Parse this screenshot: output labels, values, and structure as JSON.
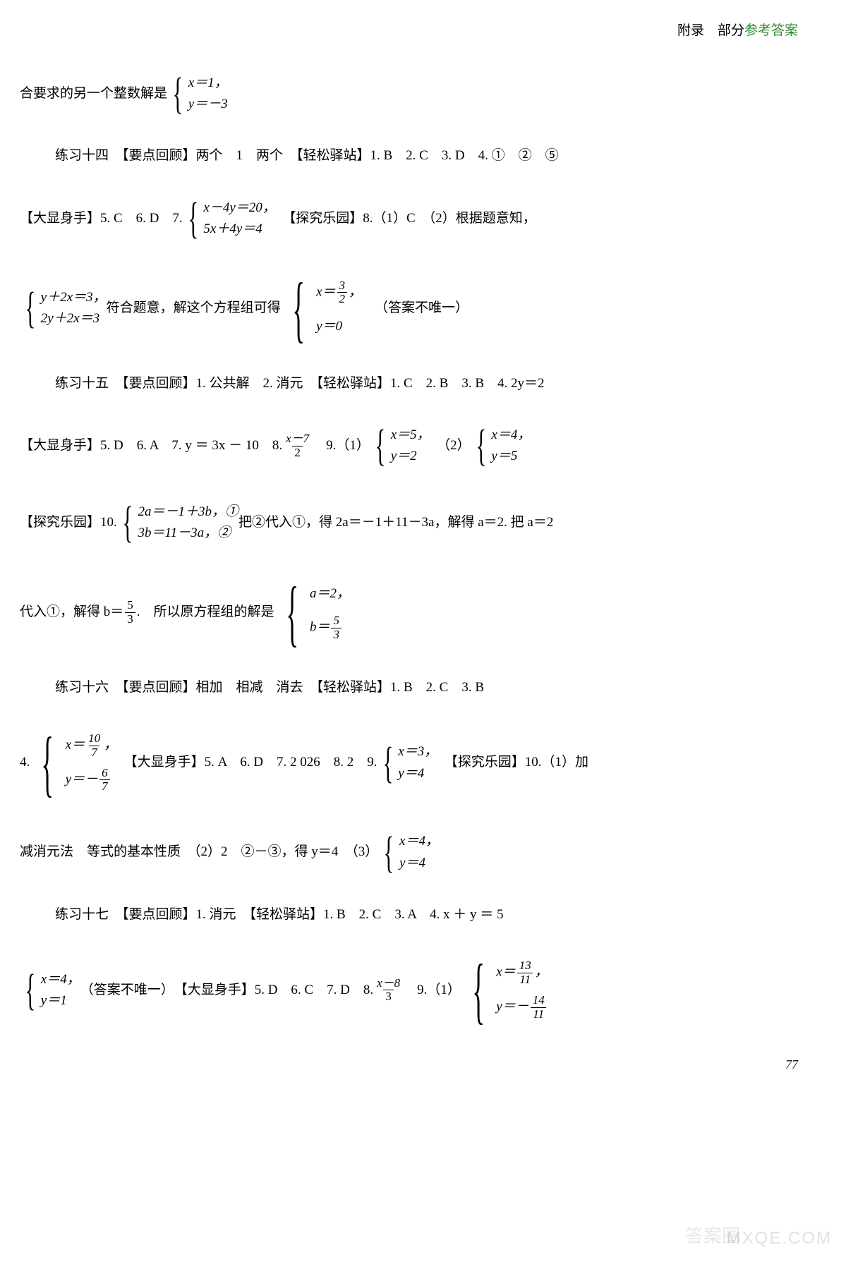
{
  "header": {
    "prefix": "附录　部分",
    "green": "参考答案"
  },
  "l1": {
    "pre": "合要求的另一个整数解是",
    "sys": {
      "r1": "x＝1，",
      "r2": "y＝－3"
    }
  },
  "l2": {
    "t": "练习十四　【要点回顾】两个　1　两个　【轻松驿站】1. B　2. C　3. D　4. ①　②　⑤"
  },
  "l3": {
    "pre": "【大显身手】5. C　6. D　7.",
    "sys": {
      "r1": "x－4y＝20，",
      "r2": "5x＋4y＝4"
    },
    "post": "　【探究乐园】8.（1）C　（2）根据题意知，"
  },
  "l4": {
    "sys1": {
      "r1": "y＋2x＝3，",
      "r2": "2y＋2x＝3"
    },
    "mid": "符合题意，解这个方程组可得",
    "sys2r1a": "x＝",
    "sys2r1frac": {
      "n": "3",
      "d": "2"
    },
    "sys2r1b": "，",
    "sys2r2": "y＝0",
    "post": "（答案不唯一）"
  },
  "l5": {
    "t": "练习十五　【要点回顾】1. 公共解　2. 消元　【轻松驿站】1. C　2. B　3. B　4. 2y＝2"
  },
  "l6": {
    "pre": "【大显身手】5. D　6. A　7. y ＝ 3x － 10　8. ",
    "frac": {
      "n": "x－7",
      "d": "2"
    },
    "mid": "　9.（1）",
    "sys1": {
      "r1": "x＝5，",
      "r2": "y＝2"
    },
    "mid2": "　（2）",
    "sys2": {
      "r1": "x＝4，",
      "r2": "y＝5"
    }
  },
  "l7": {
    "pre": "【探究乐园】10.",
    "sys": {
      "r1": "2a＝－1＋3b，①",
      "r2": "3b＝11－3a，②"
    },
    "post": "把②代入①，得 2a＝－1＋11－3a，解得 a＝2. 把 a＝2"
  },
  "l8": {
    "pre1": "代入①，解得 b＝",
    "frac1": {
      "n": "5",
      "d": "3"
    },
    "pre2": ".　所以原方程组的解是",
    "sysr1": "a＝2，",
    "sysr2a": "b＝",
    "sysr2frac": {
      "n": "5",
      "d": "3"
    }
  },
  "l9": {
    "t": "练习十六　【要点回顾】相加　相减　消去　【轻松驿站】1. B　2. C　3. B"
  },
  "l10": {
    "pre": "4.",
    "sysr1a": "x＝",
    "sysr1frac": {
      "n": "10",
      "d": "7"
    },
    "sysr1b": "，",
    "sysr2a": "y＝－",
    "sysr2frac": {
      "n": "6",
      "d": "7"
    },
    "mid": "　【大显身手】5. A　6. D　7. 2 026　8. 2　9.",
    "sys2": {
      "r1": "x＝3，",
      "r2": "y＝4"
    },
    "post": "　【探究乐园】10.（1）加"
  },
  "l11": {
    "pre": "减消元法　等式的基本性质　（2）2　②－③，得 y＝4　（3）",
    "sys": {
      "r1": "x＝4，",
      "r2": "y＝4"
    }
  },
  "l12": {
    "t": "练习十七　【要点回顾】1. 消元　【轻松驿站】1. B　2. C　3. A　4. x ＋ y ＝ 5"
  },
  "l13": {
    "sys1": {
      "r1": "x＝4，",
      "r2": "y＝1"
    },
    "mid1": "（答案不唯一）　【大显身手】5. D　6. C　7. D　8. ",
    "frac": {
      "n": "x－8",
      "d": "3"
    },
    "mid2": "　9.（1）",
    "sys2r1a": "x＝",
    "sys2r1frac": {
      "n": "13",
      "d": "11"
    },
    "sys2r1b": "，",
    "sys2r2a": "y＝－",
    "sys2r2frac": {
      "n": "14",
      "d": "11"
    }
  },
  "page": "77",
  "wm_cn": "答案圈",
  "wm_en": "MXQE.COM"
}
